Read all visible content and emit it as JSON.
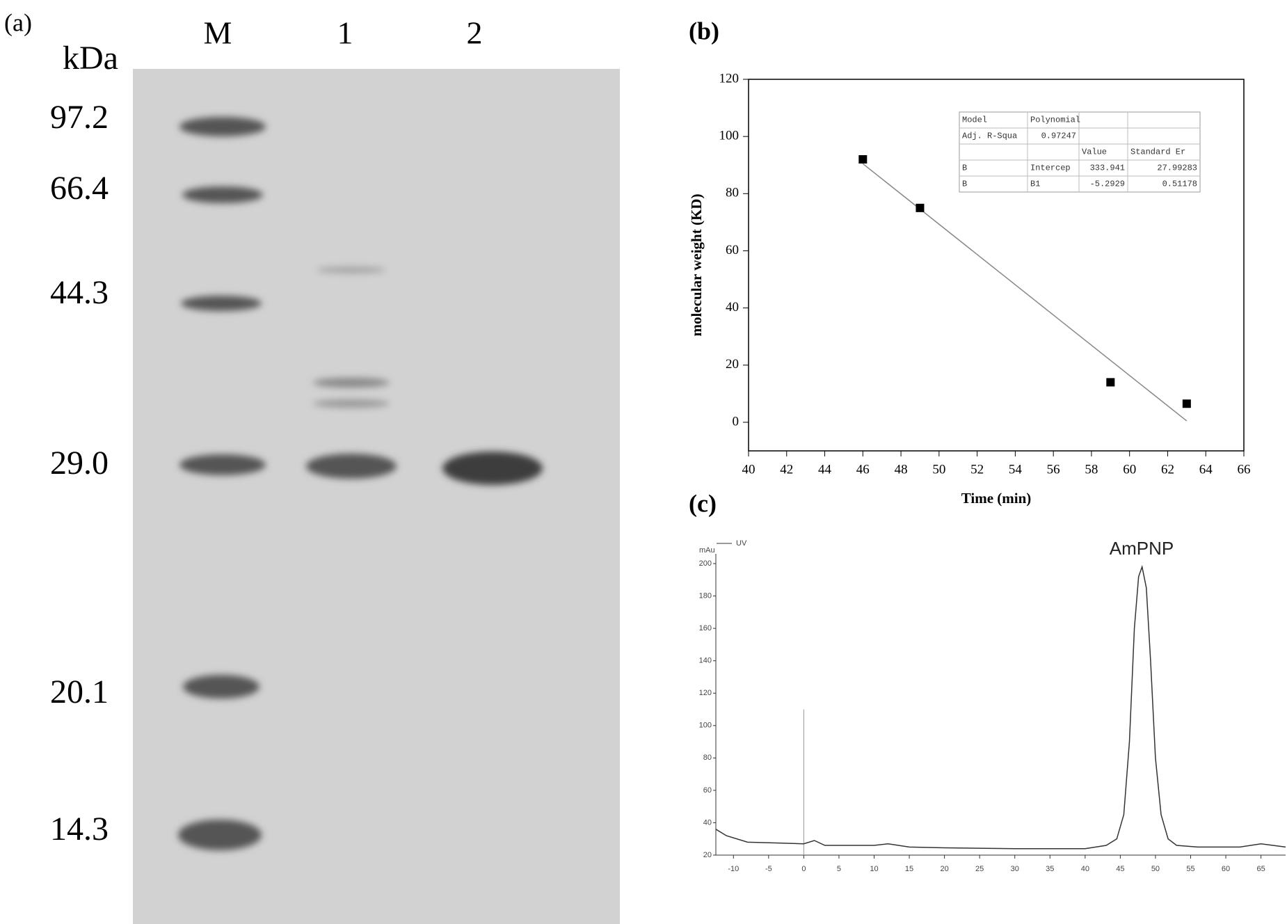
{
  "gel": {
    "label": "(a)",
    "lanes": [
      "M",
      "1",
      "2"
    ],
    "unit": "kDa",
    "markers": [
      "97.2",
      "66.4",
      "44.3",
      "29.0",
      "20.1",
      "14.3"
    ]
  },
  "chart_data": [
    {
      "type": "scatter",
      "label": "(b)",
      "x_label": "Time (min)",
      "y_label": "molecular weight (KD)",
      "x": [
        46,
        49,
        59,
        63
      ],
      "y": [
        92,
        75,
        14,
        6.5
      ],
      "color": "#000000",
      "fit_color": "#888888",
      "xlim": [
        40,
        66
      ],
      "ylim": [
        -10,
        120
      ],
      "xticks": [
        40,
        42,
        44,
        46,
        48,
        50,
        52,
        54,
        56,
        58,
        60,
        62,
        64,
        66
      ],
      "yticks": [
        0,
        20,
        40,
        60,
        80,
        100,
        120
      ],
      "fit_table": [
        [
          "Model",
          "Polynomial",
          null,
          null
        ],
        [
          "Adj. R-Squa",
          0.97247,
          null,
          null
        ],
        [
          null,
          null,
          "Value",
          "Standard Er"
        ],
        [
          "B",
          "Intercep",
          333.941,
          27.99283
        ],
        [
          "B",
          "B1",
          -5.2929,
          0.51178
        ]
      ]
    },
    {
      "type": "line",
      "label": "(c)",
      "y_label": "mAu",
      "annotation": "AmPNP",
      "series": [
        {
          "name": "UV",
          "color": "#333333",
          "x": [
            -12.5,
            -11,
            -8,
            -4,
            0,
            1.5,
            3,
            6,
            10,
            12,
            15,
            20,
            30,
            40,
            43,
            44.5,
            45.5,
            46.3,
            47,
            47.6,
            48.1,
            48.7,
            49.3,
            50,
            50.8,
            51.8,
            53,
            56,
            62,
            65,
            68.5
          ],
          "values": [
            36,
            32,
            28,
            27.5,
            27,
            29,
            26,
            26,
            26,
            27,
            25,
            24.5,
            24,
            24,
            26,
            30,
            45,
            90,
            160,
            192,
            198,
            185,
            140,
            80,
            45,
            30,
            26,
            25,
            25,
            27,
            25
          ]
        }
      ],
      "marker_line": {
        "x": 0,
        "y": 110
      },
      "xlim": [
        -12.5,
        68.5
      ],
      "ylim": [
        20,
        200
      ],
      "xticks": [
        -10,
        -5,
        0,
        5,
        10,
        15,
        20,
        25,
        30,
        35,
        40,
        45,
        50,
        55,
        60,
        65
      ],
      "yticks": [
        20,
        40,
        60,
        80,
        100,
        120,
        140,
        160,
        180,
        200
      ]
    }
  ]
}
